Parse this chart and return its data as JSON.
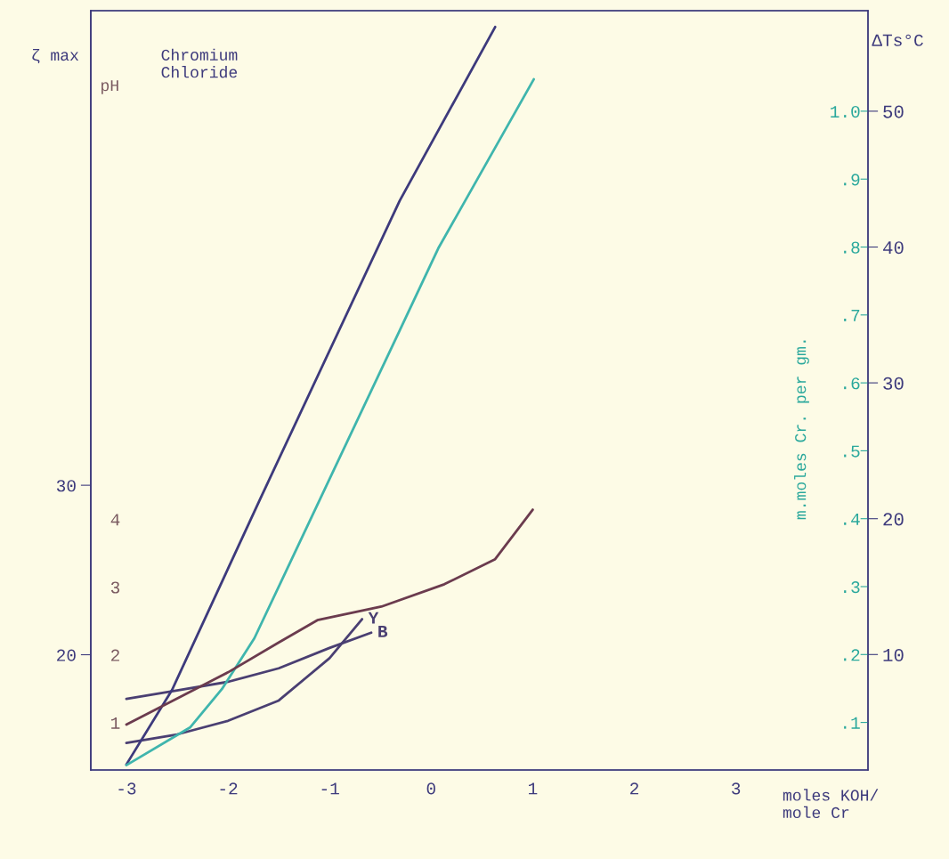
{
  "chart_data": [
    {
      "type": "line",
      "title": "Chromium\nChloride",
      "xlabel": "moles KOH/\nmole Cr",
      "ylabel": "ζ max",
      "y2label": "ΔTs°C",
      "y3label": "m.moles Cr. per gm.",
      "xlim": [
        -3.35,
        4.3
      ],
      "xticks": [
        -3,
        -2,
        -1,
        0,
        1,
        2,
        3
      ],
      "ylim": [
        13.2,
        58
      ],
      "yticks": [
        20,
        30
      ],
      "y2lim": [
        1.5,
        57.4
      ],
      "y2ticks": [
        10,
        20,
        30,
        40,
        50
      ],
      "y3lim": [
        0.03,
        1.148
      ],
      "y3ticks": [
        {
          "value": 0.1,
          "label": ".1"
        },
        {
          "value": 0.2,
          "label": ".2"
        },
        {
          "value": 0.3,
          "label": ".3"
        },
        {
          "value": 0.4,
          "label": ".4"
        },
        {
          "value": 0.5,
          "label": ".5"
        },
        {
          "value": 0.6,
          "label": ".6"
        },
        {
          "value": 0.7,
          "label": ".7"
        },
        {
          "value": 0.8,
          "label": ".8"
        },
        {
          "value": 0.9,
          "label": ".9"
        },
        {
          "value": 1.0,
          "label": "1.0"
        }
      ],
      "grid": false,
      "legend": false,
      "marker": "none",
      "line_style": "solid",
      "series": [
        {
          "axis": "y2",
          "color": "#3d3a7c",
          "x": [
            -3,
            -2.55,
            -1.68,
            -0.31,
            0.63
          ],
          "values": [
            1.9,
            7.4,
            21.5,
            43.4,
            56.2
          ]
        },
        {
          "axis": "y3",
          "color": "#3fb5ad",
          "x": [
            -3,
            -2.37,
            -2.06,
            -1.74,
            -1.43,
            -1.09,
            -0.31,
            0.07,
            1.01
          ],
          "values": [
            0.037,
            0.093,
            0.149,
            0.224,
            0.322,
            0.43,
            0.677,
            0.798,
            1.047
          ]
        },
        {
          "name": "B",
          "color": "#4a3f72",
          "x": [
            -3,
            -2.5,
            -2,
            -1.5,
            -1,
            -0.59
          ],
          "values": [
            17.4,
            17.9,
            18.4,
            19.2,
            20.4,
            21.3
          ]
        },
        {
          "name": "Y",
          "color": "#4a3f72",
          "x": [
            -3,
            -2.5,
            -2,
            -1.5,
            -1,
            -0.68
          ],
          "values": [
            14.8,
            15.3,
            16.1,
            17.3,
            19.8,
            22.1
          ]
        }
      ]
    },
    {
      "type": "line",
      "ylabel": "pH",
      "tick_labels": "y",
      "xlim": [
        -3.35,
        4.3
      ],
      "xticks": [
        -3,
        -2,
        -1,
        0,
        1,
        2,
        3
      ],
      "ylim": [
        0.3,
        11.5
      ],
      "yticks": [
        1,
        2,
        3,
        4
      ],
      "grid": false,
      "legend": false,
      "marker": "none",
      "line_style": "solid",
      "series": [
        {
          "color": "#6b3b4e",
          "x": [
            -3,
            -2,
            -1.5,
            -1.12,
            -0.49,
            0.13,
            0.63,
            1.0
          ],
          "values": [
            0.97,
            1.74,
            2.18,
            2.51,
            2.71,
            3.04,
            3.41,
            4.14
          ]
        }
      ]
    }
  ]
}
